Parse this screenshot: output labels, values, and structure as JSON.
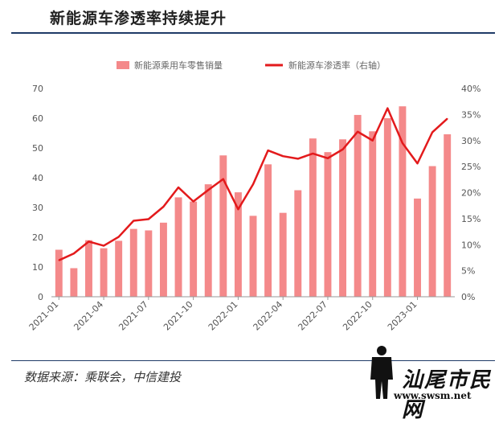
{
  "header": {
    "title": "新能源车渗透率持续提升"
  },
  "footer": {
    "source": "数据来源：乘联会，中信建投"
  },
  "watermark": {
    "text": "汕尾市民网",
    "url": "www.swsm.net"
  },
  "colors": {
    "bar": "#f4898a",
    "line": "#e31a1c",
    "axis": "#999999",
    "rule": "#1f3b67"
  },
  "chart_data": {
    "type": "bar",
    "title": "",
    "xlabel": "",
    "ylabel": "",
    "legend_position": "top",
    "grid": false,
    "categories": [
      "2021-01",
      "2021-02",
      "2021-03",
      "2021-04",
      "2021-05",
      "2021-06",
      "2021-07",
      "2021-08",
      "2021-09",
      "2021-10",
      "2021-11",
      "2021-12",
      "2022-01",
      "2022-02",
      "2022-03",
      "2022-04",
      "2022-05",
      "2022-06",
      "2022-07",
      "2022-08",
      "2022-09",
      "2022-10",
      "2022-11",
      "2022-12",
      "2023-01",
      "2023-02",
      "2023-03"
    ],
    "x_tick_labels": [
      "2021-01",
      "2021-04",
      "2021-07",
      "2021-10",
      "2022-01",
      "2022-04",
      "2022-07",
      "2022-10",
      "2023-01"
    ],
    "x_tick_every": 3,
    "ylim_left": [
      0,
      70
    ],
    "yticks_left": [
      "0",
      "10",
      "20",
      "30",
      "40",
      "50",
      "60",
      "70"
    ],
    "ylim_right": [
      0,
      40
    ],
    "yticks_right": [
      "0%",
      "5%",
      "10%",
      "15%",
      "20%",
      "25%",
      "30%",
      "35%",
      "40%"
    ],
    "series": [
      {
        "name": "新能源乘用车零售销量",
        "type": "bar",
        "axis": "left",
        "values": [
          15.8,
          9.6,
          19.0,
          16.3,
          18.8,
          22.8,
          22.3,
          24.9,
          33.4,
          32.0,
          37.8,
          47.5,
          35.1,
          27.2,
          44.5,
          28.2,
          35.8,
          53.2,
          48.6,
          52.9,
          61.1,
          55.6,
          60.0,
          64.0,
          33.0,
          43.9,
          54.6
        ]
      },
      {
        "name": "新能源车渗透率（右轴）",
        "type": "line",
        "axis": "right",
        "values": [
          7.0,
          8.3,
          10.6,
          9.8,
          11.5,
          14.6,
          14.9,
          17.3,
          21.0,
          18.3,
          20.5,
          22.6,
          16.8,
          21.6,
          28.1,
          27.0,
          26.5,
          27.5,
          26.6,
          28.3,
          31.7,
          30.0,
          36.2,
          29.5,
          25.6,
          31.6,
          34.2
        ]
      }
    ]
  }
}
